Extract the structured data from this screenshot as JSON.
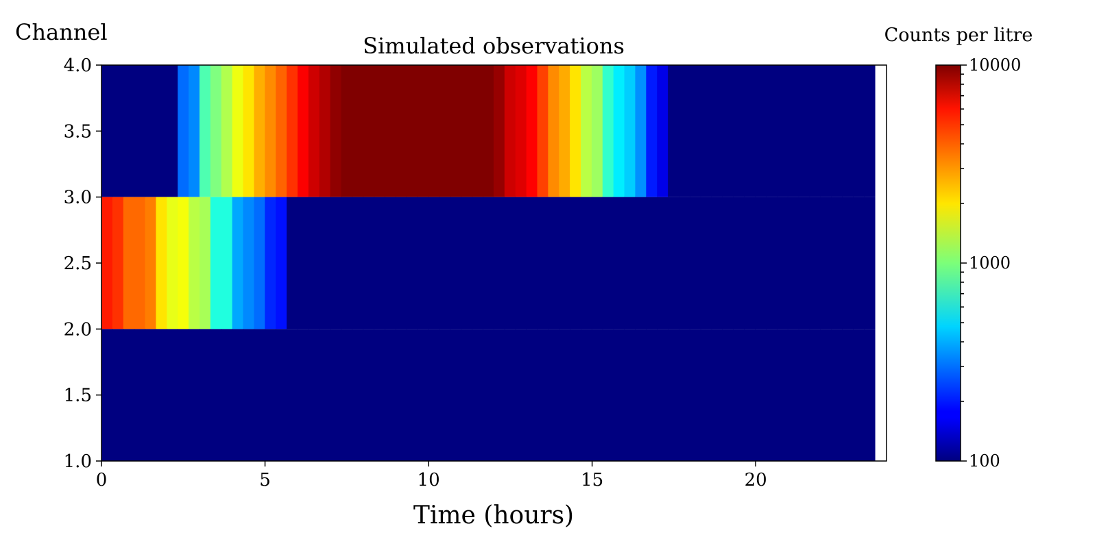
{
  "chart_data": {
    "type": "heatmap",
    "title": "Simulated observations",
    "xlabel": "Time (hours)",
    "ylabel": "Channel",
    "xlim": [
      0,
      24
    ],
    "ylim": [
      1.0,
      4.0
    ],
    "x_ticks": [
      0,
      5,
      10,
      15,
      20
    ],
    "y_ticks": [
      1.0,
      1.5,
      2.0,
      2.5,
      3.0,
      3.5,
      4.0
    ],
    "y_tick_labels": [
      "1.0",
      "1.5",
      "2.0",
      "2.5",
      "3.0",
      "3.5",
      "4.0"
    ],
    "bin_width_hours": 0.333,
    "data_end_hours": 23.667,
    "rows": [
      {
        "y_range": [
          3.0,
          4.0
        ],
        "values": [
          100,
          100,
          100,
          100,
          100,
          100,
          100,
          290,
          330,
          800,
          1000,
          1250,
          1650,
          2000,
          2550,
          3000,
          3600,
          4500,
          5700,
          7000,
          8000,
          9300,
          10000,
          10000,
          10000,
          10000,
          10000,
          10000,
          10000,
          10000,
          10000,
          10000,
          10000,
          10000,
          10000,
          10000,
          9000,
          7000,
          6500,
          5600,
          4200,
          3000,
          2600,
          2000,
          1300,
          1150,
          700,
          520,
          450,
          340,
          200,
          160,
          100,
          100,
          100,
          100,
          100,
          100,
          100,
          100,
          100,
          100,
          100,
          100,
          100,
          100,
          100,
          100,
          100,
          100,
          100
        ]
      },
      {
        "y_range": [
          2.0,
          3.0
        ],
        "values": [
          5000,
          4500,
          3500,
          3500,
          3200,
          2000,
          1600,
          1700,
          1300,
          1200,
          650,
          650,
          380,
          330,
          290,
          210,
          190,
          100,
          100,
          100,
          100,
          100,
          100,
          100,
          100,
          100,
          100,
          100,
          100,
          100,
          100,
          100,
          100,
          100,
          100,
          100,
          100,
          100,
          100,
          100,
          100,
          100,
          100,
          100,
          100,
          100,
          100,
          100,
          100,
          100,
          100,
          100,
          100,
          100,
          100,
          100,
          100,
          100,
          100,
          100,
          100,
          100,
          100,
          100,
          100,
          100,
          100,
          100,
          100,
          100,
          100
        ]
      },
      {
        "y_range": [
          1.0,
          2.0
        ],
        "values": [
          100,
          100,
          100,
          100,
          100,
          100,
          100,
          100,
          100,
          100,
          100,
          100,
          100,
          100,
          100,
          100,
          100,
          100,
          100,
          100,
          100,
          100,
          100,
          100,
          100,
          100,
          100,
          100,
          100,
          100,
          100,
          100,
          100,
          100,
          100,
          100,
          100,
          100,
          100,
          100,
          100,
          100,
          100,
          100,
          100,
          100,
          100,
          100,
          100,
          100,
          100,
          100,
          100,
          100,
          100,
          100,
          100,
          100,
          100,
          100,
          100,
          100,
          100,
          100,
          100,
          100,
          100,
          100,
          100,
          100,
          100
        ]
      }
    ],
    "colorbar": {
      "label": "Counts per litre",
      "scale": "log",
      "colormap": "jet",
      "range": [
        100,
        10000
      ],
      "tick_labels": [
        "100",
        "1000",
        "10000"
      ]
    }
  }
}
